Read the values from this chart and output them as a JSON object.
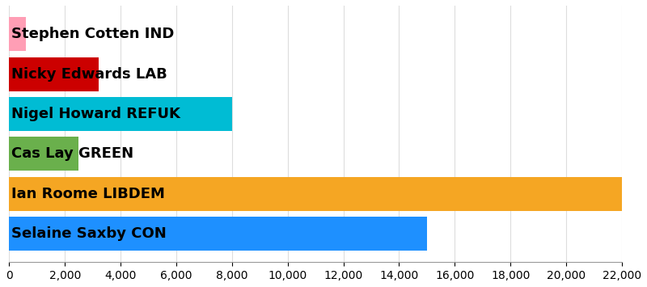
{
  "candidates": [
    "Selaine Saxby CON",
    "Ian Roome LIBDEM",
    "Cas Lay GREEN",
    "Nigel Howard REFUK",
    "Nicky Edwards LAB",
    "Stephen Cotten IND"
  ],
  "values": [
    15000,
    22000,
    2500,
    8000,
    3200,
    600
  ],
  "colors": [
    "#1e90ff",
    "#f5a623",
    "#6ab04c",
    "#00bcd4",
    "#cc0000",
    "#ff9eb5"
  ],
  "xlim": [
    0,
    22000
  ],
  "xticks": [
    0,
    2000,
    4000,
    6000,
    8000,
    10000,
    12000,
    14000,
    16000,
    18000,
    20000,
    22000
  ],
  "background_color": "#ffffff",
  "label_fontsize": 13,
  "tick_fontsize": 10,
  "bar_height": 0.85
}
